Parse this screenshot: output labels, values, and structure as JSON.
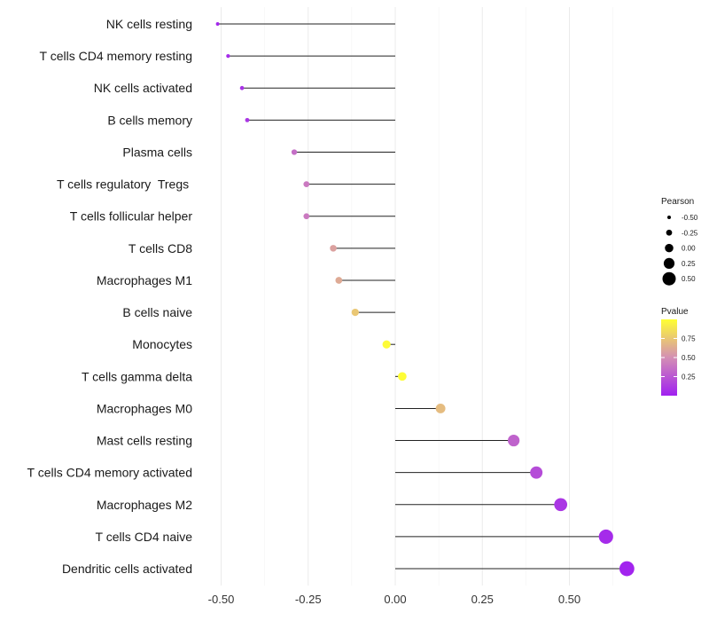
{
  "chart_data": {
    "type": "lollipop",
    "title": "",
    "xlabel": "",
    "ylabel": "",
    "xlim": [
      -0.5,
      0.65
    ],
    "x_ticks": [
      -0.5,
      -0.25,
      0.0,
      0.25,
      0.5
    ],
    "x_tick_labels": [
      "-0.50",
      "-0.25",
      "0.00",
      "0.25",
      "0.50"
    ],
    "baseline": 0,
    "categories": [
      "NK cells resting",
      "T cells CD4 memory resting",
      "NK cells activated",
      "B cells memory",
      "Plasma cells",
      "T cells regulatory  Tregs ",
      "T cells follicular helper",
      "T cells CD8",
      "Macrophages M1",
      "B cells naive",
      "Monocytes",
      "T cells gamma delta",
      "Macrophages M0",
      "Mast cells resting",
      "T cells CD4 memory activated",
      "Macrophages M2",
      "T cells CD4 naive",
      "Dendritic cells activated"
    ],
    "values": [
      -0.51,
      -0.48,
      -0.44,
      -0.425,
      -0.29,
      -0.255,
      -0.255,
      -0.178,
      -0.162,
      -0.115,
      -0.025,
      0.02,
      0.13,
      0.34,
      0.405,
      0.475,
      0.605,
      0.665
    ],
    "pvalues": [
      0.03,
      0.05,
      0.08,
      0.1,
      0.35,
      0.4,
      0.4,
      0.58,
      0.62,
      0.75,
      0.98,
      0.99,
      0.7,
      0.3,
      0.2,
      0.1,
      0.05,
      0.02
    ],
    "grid": true,
    "legend": {
      "size": {
        "title": "Pearson",
        "values": [
          -0.5,
          -0.25,
          0.0,
          0.25,
          0.5
        ],
        "labels": [
          "-0.50",
          "-0.25",
          "0.00",
          "0.25",
          "0.50"
        ]
      },
      "color": {
        "title": "Pvalue",
        "breaks": [
          0.25,
          0.5,
          0.75
        ],
        "labels": [
          "0.25",
          "0.50",
          "0.75"
        ],
        "range": [
          0.0,
          1.0
        ],
        "low_color": "#a020f0",
        "mid_color": "#d48fb4",
        "high_color": "#ffff33"
      },
      "placement": "right"
    }
  }
}
